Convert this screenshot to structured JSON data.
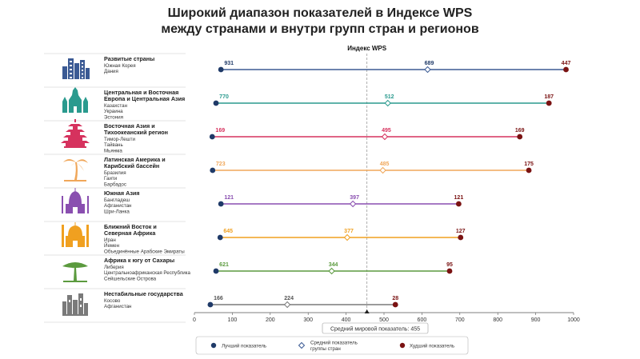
{
  "header": {
    "title_line1": "Широкий диапазон показателей в Индексе WPS",
    "title_line2": "между странами и внутри групп стран и регионов"
  },
  "colors": {
    "best": "#1f3a68",
    "worst": "#7a1212",
    "avg_marker": "#ffffff",
    "grid_line": "#e2e2e2",
    "world_avg_line": "#9a9a9a"
  },
  "legend": {
    "best": "Лучший показатель",
    "avg_line1": "Средний показатель",
    "avg_line2": "группы стран",
    "worst": "Худший показатель"
  },
  "world_avg_label": "Средний мировой показатель: 455",
  "chart_data": {
    "type": "dumbbell",
    "xlabel": "Индекс WPS",
    "xlim": [
      0,
      1000
    ],
    "xticks": [
      0,
      100,
      200,
      300,
      400,
      500,
      600,
      700,
      800,
      900,
      1000
    ],
    "world_average": 455,
    "groups": [
      {
        "name_lines": [
          "Развитые страны"
        ],
        "countries": [
          "Южная Корея",
          "Дания"
        ],
        "icon": "skyscrapers-icon",
        "color": "#3b5a94",
        "best": 70,
        "best_label": "931",
        "avg": 615,
        "avg_label": "689",
        "worst": 980,
        "worst_label": "447"
      },
      {
        "name_lines": [
          "Центральная и Восточная",
          "Европа и Центральная Азия"
        ],
        "countries": [
          "Казахстан",
          "Украина",
          "Эстония"
        ],
        "icon": "cathedral-icon",
        "color": "#2a9a8e",
        "best": 57,
        "best_label": "770",
        "avg": 510,
        "avg_label": "512",
        "worst": 935,
        "worst_label": "187"
      },
      {
        "name_lines": [
          "Восточная Азия и",
          "Тихоокеанский регион"
        ],
        "countries": [
          "Тимор-Лешти",
          "Тайвань",
          "Мьянма"
        ],
        "icon": "pagoda-icon",
        "color": "#d6325e",
        "best": 47,
        "best_label": "169",
        "avg": 502,
        "avg_label": "495",
        "worst": 858,
        "worst_label": "169"
      },
      {
        "name_lines": [
          "Латинская Америка и",
          "Карибский бассейн"
        ],
        "countries": [
          "Бразилия",
          "Гаити",
          "Барбадос"
        ],
        "icon": "palm-tree-icon",
        "color": "#f0a75a",
        "best": 48,
        "best_label": "723",
        "avg": 497,
        "avg_label": "485",
        "worst": 882,
        "worst_label": "175"
      },
      {
        "name_lines": [
          "Южная Азия"
        ],
        "countries": [
          "Бангладеш",
          "Афганистан",
          "Шри-Ланка"
        ],
        "icon": "taj-mahal-icon",
        "color": "#8a4fb0",
        "best": 70,
        "best_label": "121",
        "avg": 418,
        "avg_label": "397",
        "worst": 697,
        "worst_label": "121"
      },
      {
        "name_lines": [
          "Ближний Восток и",
          "Северная Африка"
        ],
        "countries": [
          "Иран",
          "Йемен",
          "Объединённые Арабские Эмираты"
        ],
        "icon": "mosque-icon",
        "color": "#f0a020",
        "best": 68,
        "best_label": "645",
        "avg": 403,
        "avg_label": "377",
        "worst": 702,
        "worst_label": "127"
      },
      {
        "name_lines": [
          "Африка к югу от Сахары"
        ],
        "countries": [
          "Либерия",
          "Центральноафриканская Республика",
          "Сейшельские Острова"
        ],
        "icon": "acacia-tree-icon",
        "color": "#5b9a3e",
        "best": 57,
        "best_label": "621",
        "avg": 362,
        "avg_label": "344",
        "worst": 673,
        "worst_label": "95"
      },
      {
        "name_lines": [
          "Нестабильные государства"
        ],
        "countries": [
          "Косово",
          "Афганистан"
        ],
        "icon": "ruins-icon",
        "color": "#7a7a7a",
        "best": 42,
        "best_label": "166",
        "avg": 245,
        "avg_label": "224",
        "worst": 530,
        "worst_label": "28"
      }
    ]
  }
}
